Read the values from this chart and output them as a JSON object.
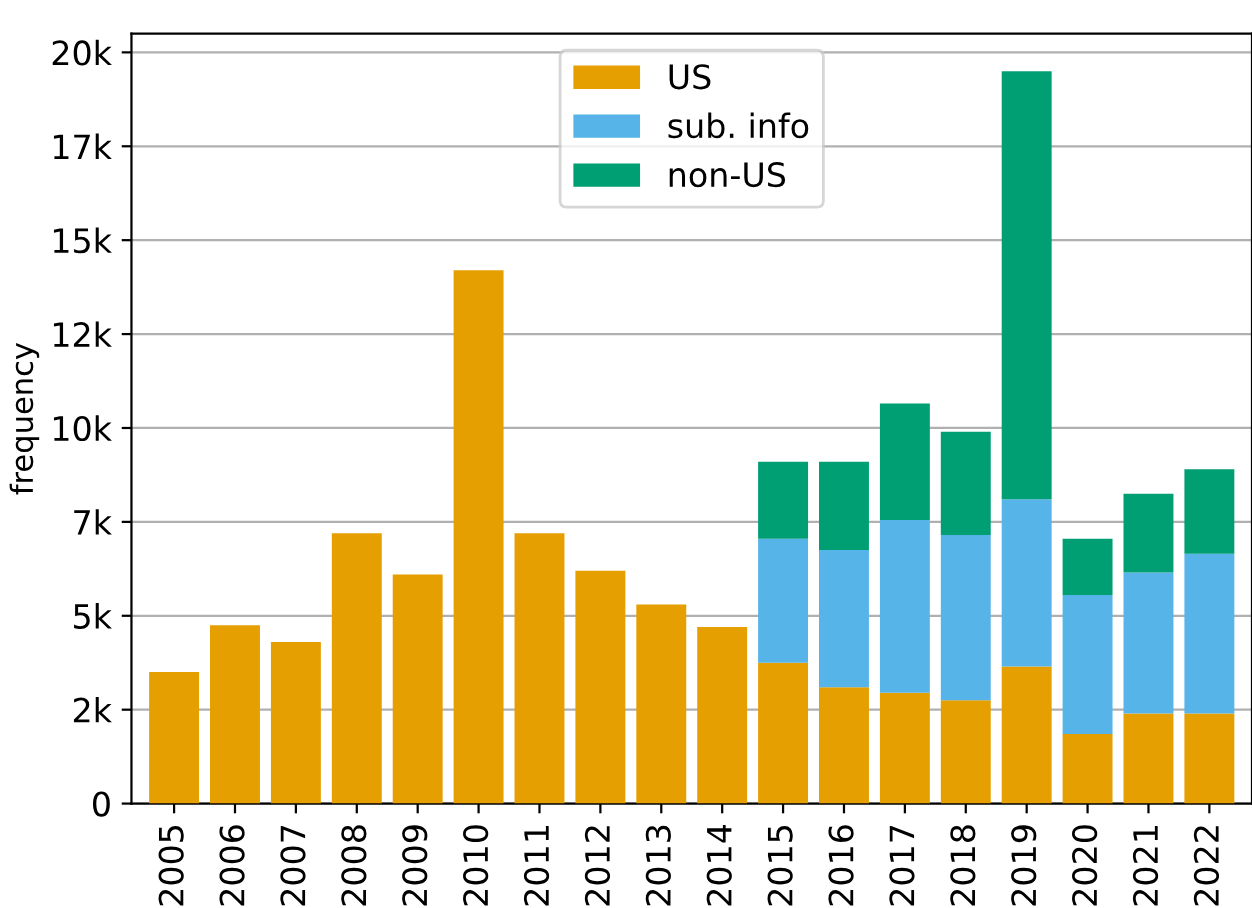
{
  "chart_data": {
    "type": "bar",
    "stacked": true,
    "ylabel": "frequency",
    "categories": [
      "2005",
      "2006",
      "2007",
      "2008",
      "2009",
      "2010",
      "2011",
      "2012",
      "2013",
      "2014",
      "2015",
      "2016",
      "2017",
      "2018",
      "2019",
      "2020",
      "2021",
      "2022"
    ],
    "series": [
      {
        "name": "US",
        "color": "#e69f00",
        "values": [
          3500,
          4750,
          4300,
          7200,
          6100,
          14200,
          7200,
          6200,
          5300,
          4700,
          3750,
          3100,
          2950,
          2750,
          3650,
          1850,
          2400,
          2400
        ]
      },
      {
        "name": "sub. info",
        "color": "#56b4e9",
        "values": [
          null,
          null,
          null,
          null,
          null,
          null,
          null,
          null,
          null,
          null,
          3300,
          3650,
          4600,
          4400,
          4450,
          3700,
          3750,
          4250
        ]
      },
      {
        "name": "non-US",
        "color": "#009e73",
        "values": [
          null,
          null,
          null,
          null,
          null,
          null,
          null,
          null,
          null,
          null,
          2050,
          2350,
          3100,
          2750,
          11400,
          1500,
          2100,
          2250
        ]
      }
    ],
    "ylim": [
      0,
      20500
    ],
    "yticks": [
      0,
      {
        "value": 2500,
        "label": "2k"
      },
      {
        "value": 5000,
        "label": "5k"
      },
      {
        "value": 7500,
        "label": "7k"
      },
      {
        "value": 10000,
        "label": "10k"
      },
      {
        "value": 12500,
        "label": "12k"
      },
      {
        "value": 15000,
        "label": "15k"
      },
      {
        "value": 17500,
        "label": "17k"
      },
      {
        "value": 20000,
        "label": "20k"
      }
    ],
    "grid": "y",
    "legend": "top center"
  }
}
